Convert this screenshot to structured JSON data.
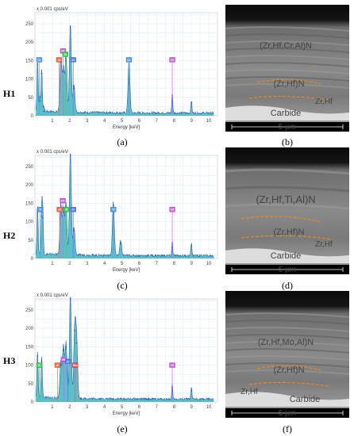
{
  "colors": {
    "spectrum_fill": "#26a9b6",
    "spectrum_line": "#1e4fb5",
    "grid": "#d8ecf4",
    "layer_green": "#3fe32a",
    "nitride_red": "#d2303a",
    "carbide_magenta": "#c93be0",
    "dashed_orange": "#e8891e"
  },
  "eds_common": {
    "y_unit_label": "x 0.001 cps/eV",
    "x_axis_label": "Energy [keV]",
    "y_ticks": [
      "0",
      "50",
      "100",
      "150",
      "200",
      "250"
    ],
    "x_ticks": [
      "1",
      "2",
      "3",
      "4",
      "5",
      "6",
      "7",
      "8",
      "9",
      "10"
    ]
  },
  "panels": [
    {
      "row_label": "H1",
      "eds_caption": "(a)",
      "sem_caption": "(b)",
      "element_boxes": [
        "Cr",
        "Al",
        "Hf",
        "N",
        "Zr",
        "Cr",
        "Hf"
      ],
      "layer_label": "(Zr,Hf,Cr,Al)N",
      "nitride_label": "(Zr,Hf)N",
      "interface_label": "Zr,Hf",
      "carbide_label": "Carbide",
      "scale_label": "5 μm"
    },
    {
      "row_label": "H2",
      "eds_caption": "(c)",
      "sem_caption": "(d)",
      "element_boxes": [
        "Ti",
        "Al",
        "Hf",
        "N",
        "Zr",
        "Ti",
        "Hf"
      ],
      "layer_label": "(Zr,Hf,Ti,Al)N",
      "nitride_label": "(Zr,Hf)N",
      "interface_label": "Zr,Hf",
      "carbide_label": "Carbide",
      "scale_label": "5 μm"
    },
    {
      "row_label": "H3",
      "eds_caption": "(e)",
      "sem_caption": "(f)",
      "element_boxes": [
        "N",
        "Al",
        "Hf",
        "Zr",
        "Mo",
        "Hf"
      ],
      "layer_label": "(Zr,Hf,Mo,Al)N",
      "nitride_label": "(Zr,Hf)N",
      "interface_label": "Zr,Hf",
      "carbide_label": "Carbide",
      "scale_label": "5 μm"
    }
  ],
  "chart_data": [
    {
      "type": "line",
      "xlabel": "Energy [keV]",
      "ylabel": "x 0.001 cps/eV",
      "xlim": [
        0,
        10
      ],
      "ylim": [
        0,
        280
      ],
      "grid": true,
      "x": [
        0.15,
        0.28,
        0.39,
        0.52,
        1.49,
        1.64,
        1.79,
        2.04,
        2.25,
        5.41,
        7.9,
        9.0
      ],
      "series": [
        {
          "values": [
            140,
            40,
            115,
            12,
            145,
            120,
            150,
            240,
            75,
            140,
            55,
            35
          ]
        }
      ]
    },
    {
      "type": "line",
      "xlabel": "Energy [keV]",
      "ylabel": "x 0.001 cps/eV",
      "xlim": [
        0,
        10
      ],
      "ylim": [
        0,
        280
      ],
      "grid": true,
      "x": [
        0.15,
        0.39,
        0.45,
        1.49,
        1.64,
        1.79,
        2.04,
        2.25,
        4.51,
        4.93,
        7.9,
        9.0
      ],
      "series": [
        {
          "values": [
            130,
            115,
            110,
            135,
            125,
            140,
            280,
            75,
            145,
            40,
            40,
            35
          ]
        }
      ]
    },
    {
      "type": "line",
      "xlabel": "Energy [keV]",
      "ylabel": "x 0.001 cps/eV",
      "xlim": [
        0,
        10
      ],
      "ylim": [
        0,
        280
      ],
      "grid": true,
      "x": [
        0.15,
        0.39,
        1.49,
        1.64,
        1.79,
        2.04,
        2.29,
        2.4,
        7.9,
        9.0
      ],
      "series": [
        {
          "values": [
            125,
            110,
            100,
            140,
            150,
            280,
            195,
            160,
            40,
            30
          ]
        }
      ]
    }
  ]
}
